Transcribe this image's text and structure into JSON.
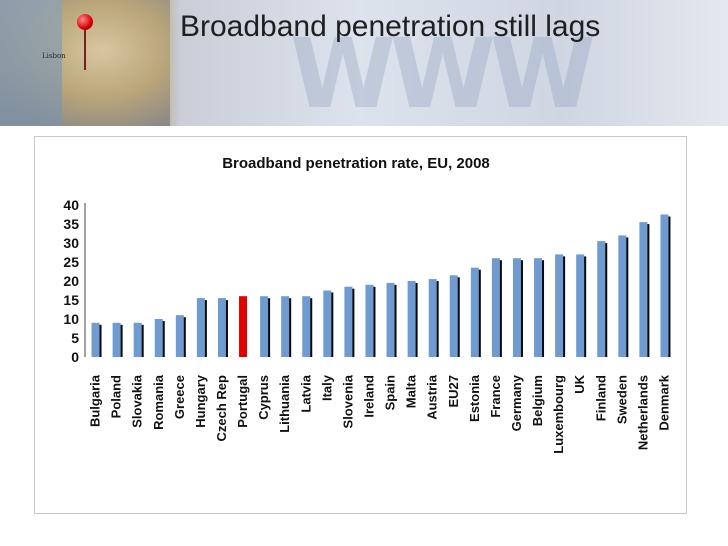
{
  "header": {
    "title": "Broadband penetration still lags",
    "map_label": "Lisbon"
  },
  "colors": {
    "bar": "#6f9bd1",
    "bar_highlight": "#e00000",
    "bar_shadow": "#0a0a0a"
  },
  "chart_data": {
    "type": "bar",
    "title": "Broadband penetration rate, EU, 2008",
    "xlabel": "",
    "ylabel": "",
    "ylim": [
      0,
      40
    ],
    "yticks": [
      0,
      5,
      10,
      15,
      20,
      25,
      30,
      35,
      40
    ],
    "grid": false,
    "highlight": "Portugal",
    "categories": [
      "Bulgaria",
      "Poland",
      "Slovakia",
      "Romania",
      "Greece",
      "Hungary",
      "Czech Rep",
      "Portugal",
      "Cyprus",
      "Lithuania",
      "Latvia",
      "Italy",
      "Slovenia",
      "Ireland",
      "Spain",
      "Malta",
      "Austria",
      "EU27",
      "Estonia",
      "France",
      "Germany",
      "Belgium",
      "Luxembourg",
      "UK",
      "Finland",
      "Sweden",
      "Netherlands",
      "Denmark"
    ],
    "values": [
      9,
      9,
      9,
      10,
      11,
      15.5,
      15.5,
      16,
      16,
      16,
      16,
      17.5,
      18.5,
      19,
      19.5,
      20,
      20.5,
      21.5,
      23.5,
      26,
      26,
      26,
      27,
      27,
      30.5,
      32,
      35.5,
      37.5
    ]
  }
}
